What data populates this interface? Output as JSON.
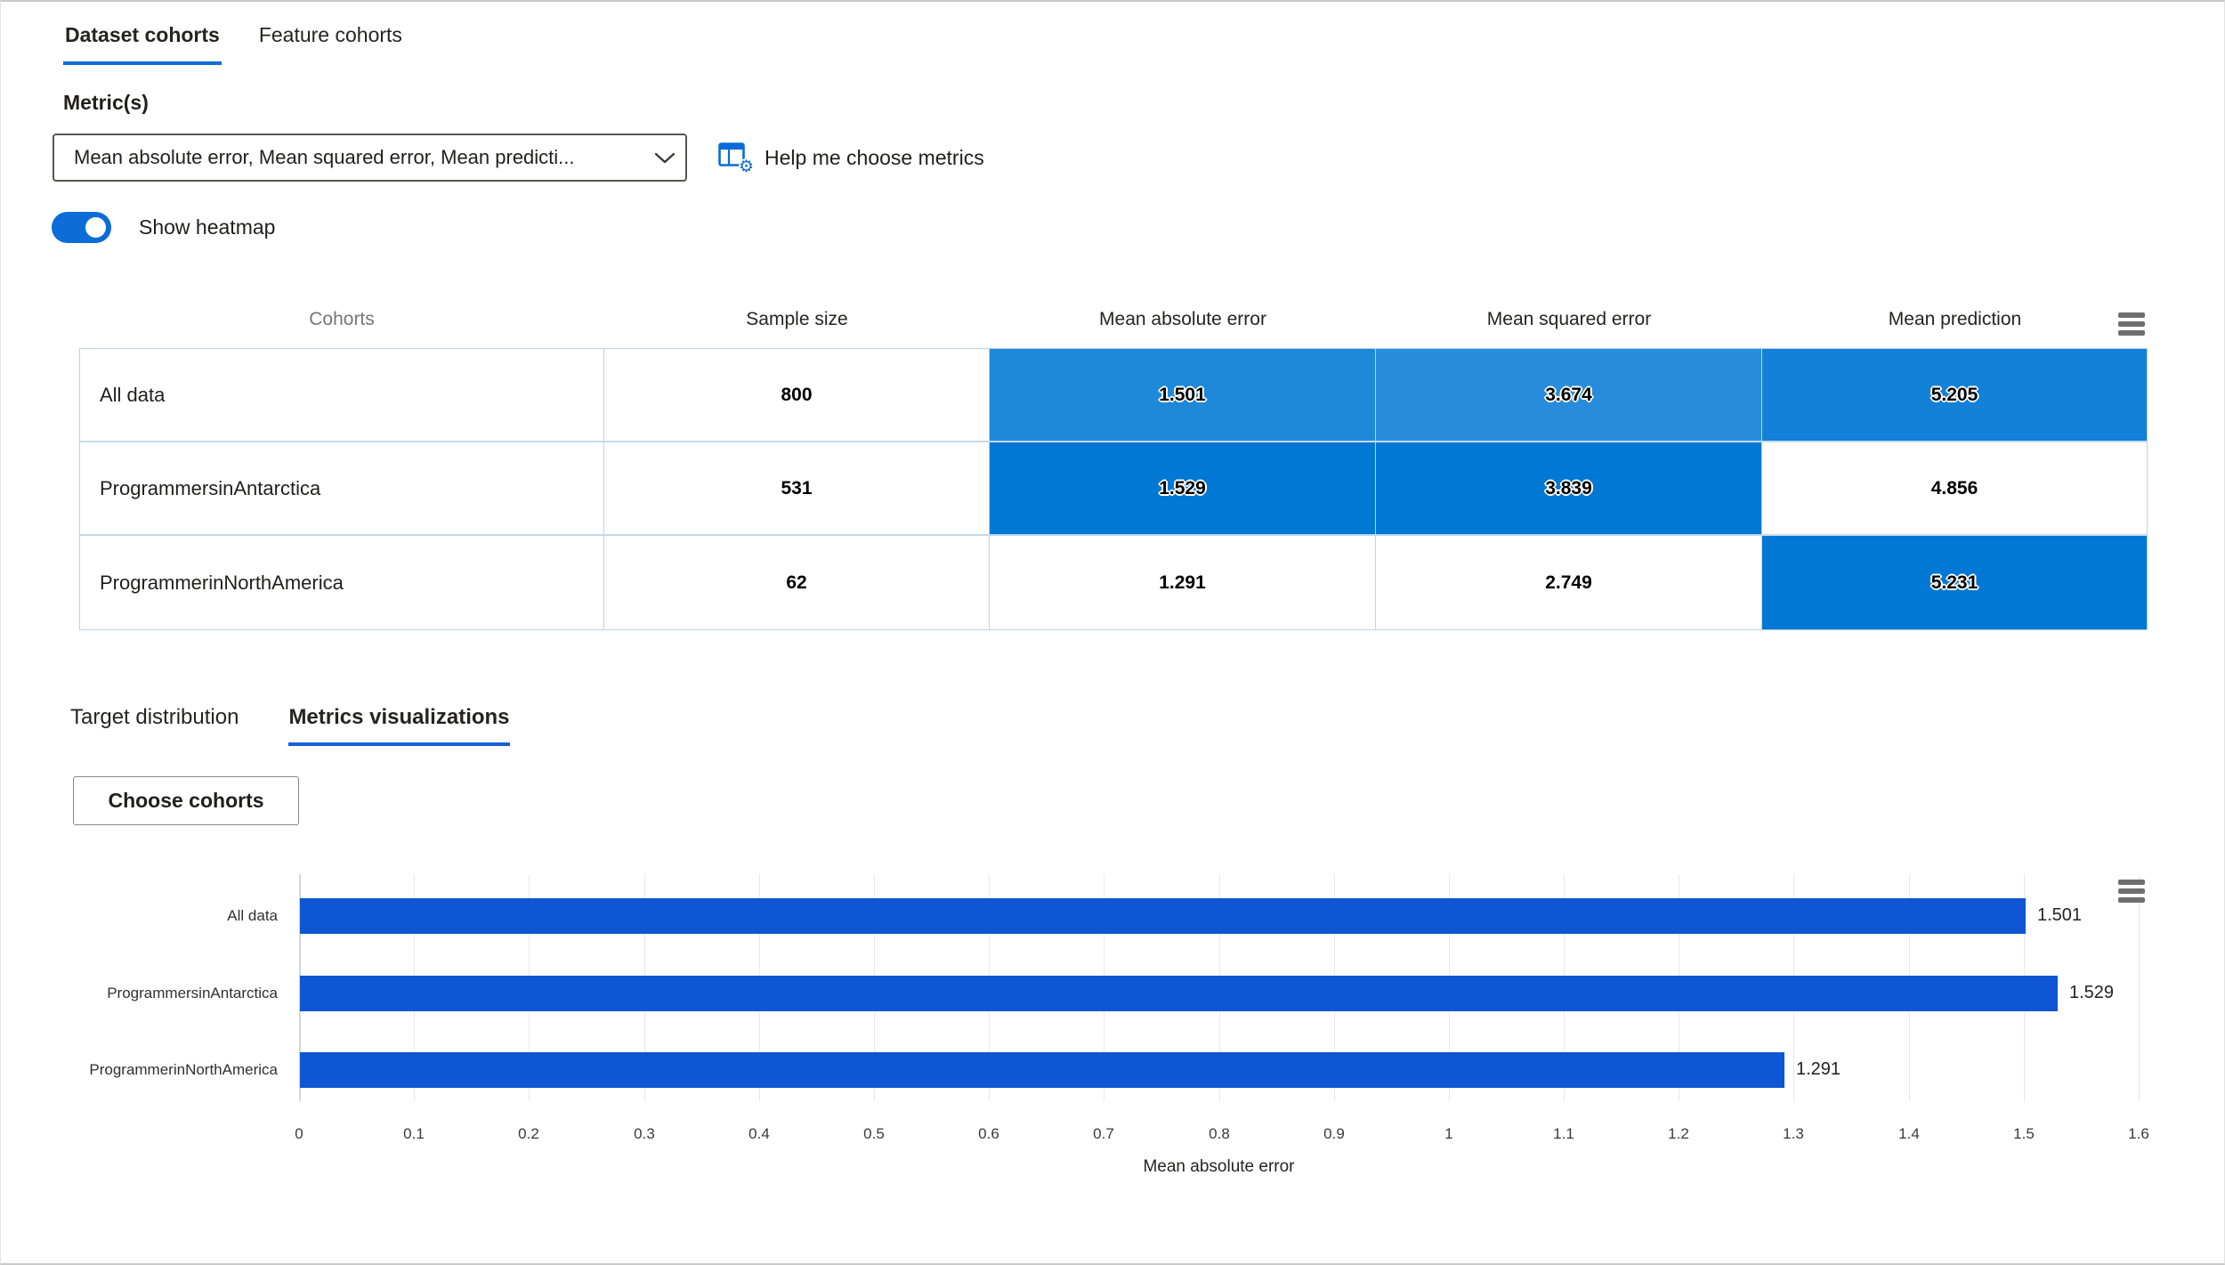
{
  "tabs": {
    "dataset": "Dataset cohorts",
    "feature": "Feature cohorts"
  },
  "metrics": {
    "label": "Metric(s)",
    "dropdown_value": "Mean absolute error, Mean squared error, Mean predicti...",
    "help_link": "Help me choose metrics"
  },
  "heatmap_toggle": {
    "label": "Show heatmap",
    "on": true
  },
  "table": {
    "columns": [
      "Cohorts",
      "Sample size",
      "Mean absolute error",
      "Mean squared error",
      "Mean prediction"
    ],
    "rows": [
      {
        "name": "All data",
        "sample_size": "800",
        "mae": "1.501",
        "mse": "3.674",
        "mp": "5.205"
      },
      {
        "name": "ProgrammersinAntarctica",
        "sample_size": "531",
        "mae": "1.529",
        "mse": "3.839",
        "mp": "4.856"
      },
      {
        "name": "ProgrammerinNorthAmerica",
        "sample_size": "62",
        "mae": "1.291",
        "mse": "2.749",
        "mp": "5.231"
      }
    ],
    "heatmap_max_color": "#0078d4"
  },
  "subtabs": {
    "target": "Target distribution",
    "metrics_viz": "Metrics visualizations"
  },
  "choose_cohorts_button": "Choose cohorts",
  "chart_data": {
    "type": "bar",
    "orientation": "horizontal",
    "title": "",
    "categories": [
      "All data",
      "ProgrammersinAntarctica",
      "ProgrammerinNorthAmerica"
    ],
    "values": [
      1.501,
      1.529,
      1.291
    ],
    "value_labels": [
      "1.501",
      "1.529",
      "1.291"
    ],
    "xlabel": "Mean absolute error",
    "ylabel": "",
    "xlim": [
      0,
      1.6
    ],
    "xticks": [
      "0",
      "0.1",
      "0.2",
      "0.3",
      "0.4",
      "0.5",
      "0.6",
      "0.7",
      "0.8",
      "0.9",
      "1",
      "1.1",
      "1.2",
      "1.3",
      "1.4",
      "1.5",
      "1.6"
    ],
    "grid": true,
    "legend": "none",
    "bar_color": "#0e56d4"
  },
  "colors": {
    "accent": "#0c6cd8",
    "heatmap_max": "#0078d4",
    "bar": "#0e56d4",
    "table_border": "#b9d2ee"
  }
}
